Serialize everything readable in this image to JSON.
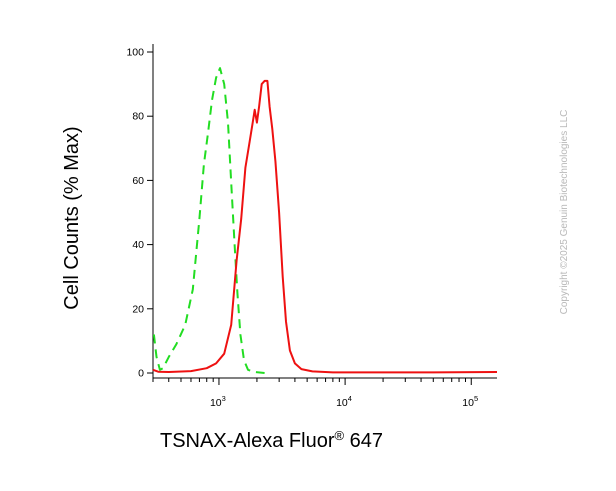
{
  "chart_data": {
    "type": "line",
    "title": "",
    "xlabel": "TSNAX-Alexa Fluor",
    "xlabel_sup": "®",
    "xlabel_suffix": " 647",
    "ylabel": "Cell Counts (% Max)",
    "xscale": "log",
    "xlim": [
      300,
      160000
    ],
    "ylim": [
      0,
      100
    ],
    "y_ticks": [
      0,
      20,
      40,
      60,
      80,
      100
    ],
    "y_tick_labels": [
      "0",
      "20",
      "40",
      "60",
      "80",
      "100"
    ],
    "x_ticks": [
      {
        "value": 1000,
        "base": "10",
        "exp": "3"
      },
      {
        "value": 10000,
        "base": "10",
        "exp": "4"
      },
      {
        "value": 100000,
        "base": "10",
        "exp": "5"
      }
    ],
    "grid": false,
    "legend": "none",
    "series": [
      {
        "color": "#22dd22",
        "style": "dashed",
        "points": [
          [
            305,
            12
          ],
          [
            320,
            5
          ],
          [
            340,
            1
          ],
          [
            360,
            1.5
          ],
          [
            400,
            5
          ],
          [
            460,
            9
          ],
          [
            540,
            15
          ],
          [
            620,
            26
          ],
          [
            700,
            48
          ],
          [
            760,
            65
          ],
          [
            820,
            75
          ],
          [
            880,
            85
          ],
          [
            950,
            92
          ],
          [
            1020,
            95
          ],
          [
            1100,
            90
          ],
          [
            1180,
            78
          ],
          [
            1260,
            57
          ],
          [
            1330,
            40
          ],
          [
            1400,
            25
          ],
          [
            1480,
            12
          ],
          [
            1580,
            4
          ],
          [
            1700,
            1
          ],
          [
            1900,
            0.3
          ],
          [
            2300,
            0
          ]
        ]
      },
      {
        "color": "#ee1111",
        "style": "solid",
        "points": [
          [
            300,
            1
          ],
          [
            330,
            0.4
          ],
          [
            400,
            0.3
          ],
          [
            600,
            0.6
          ],
          [
            800,
            1.5
          ],
          [
            950,
            3
          ],
          [
            1100,
            6
          ],
          [
            1250,
            15
          ],
          [
            1380,
            35
          ],
          [
            1500,
            48
          ],
          [
            1620,
            64
          ],
          [
            1750,
            72
          ],
          [
            1850,
            78
          ],
          [
            1920,
            82
          ],
          [
            2000,
            78
          ],
          [
            2080,
            83
          ],
          [
            2180,
            90
          ],
          [
            2300,
            91
          ],
          [
            2420,
            91
          ],
          [
            2520,
            83
          ],
          [
            2650,
            76
          ],
          [
            2800,
            66
          ],
          [
            3000,
            50
          ],
          [
            3200,
            30
          ],
          [
            3400,
            16
          ],
          [
            3650,
            7
          ],
          [
            4000,
            3
          ],
          [
            4500,
            1.2
          ],
          [
            5500,
            0.5
          ],
          [
            8000,
            0.2
          ],
          [
            50000,
            0.2
          ],
          [
            160000,
            0.3
          ]
        ]
      }
    ]
  },
  "watermark": "Copyright ©2025 Genuin Biotechnologies LLC"
}
